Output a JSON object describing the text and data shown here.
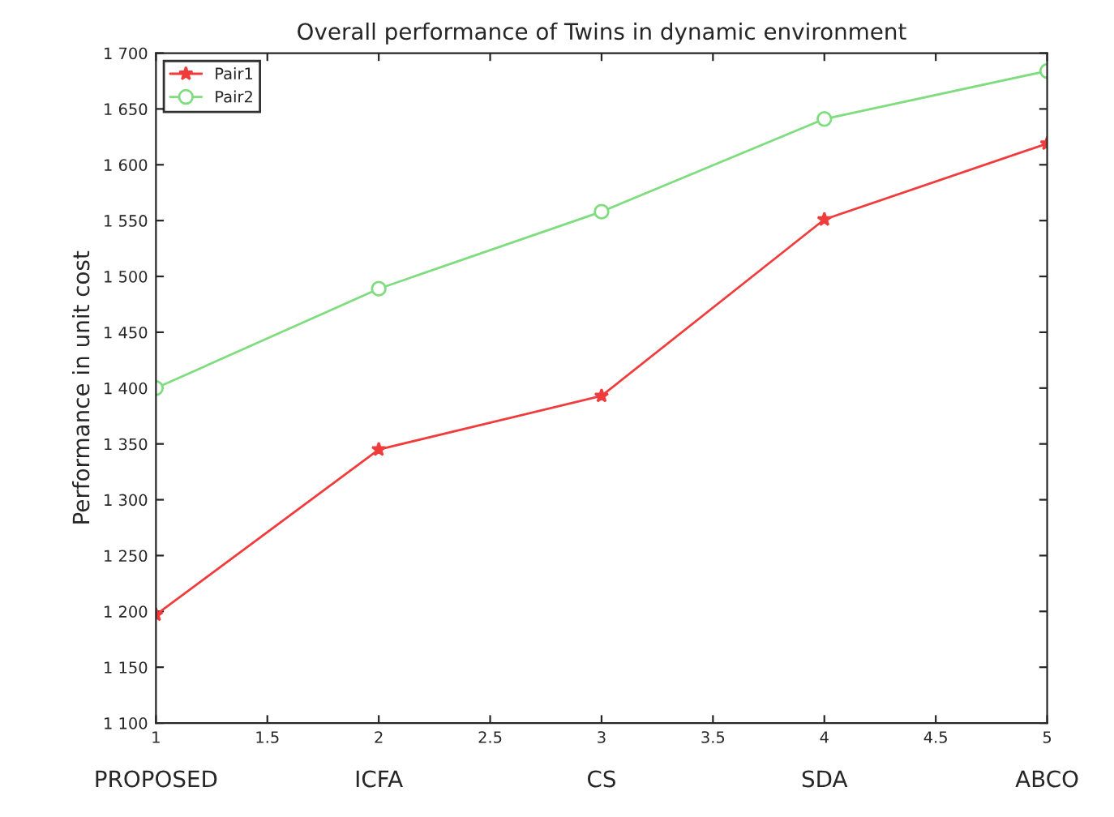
{
  "chart_data": {
    "type": "line",
    "title": "Overall performance of Twins in dynamic environment",
    "ylabel": "Performance in unit cost",
    "x": [
      1,
      2,
      3,
      4,
      5
    ],
    "series": [
      {
        "name": "Pair1",
        "color": "#f03c3c",
        "values": [
          1197,
          1345,
          1393,
          1551,
          1619
        ],
        "marker": "star"
      },
      {
        "name": "Pair2",
        "color": "#7fdc7f",
        "values": [
          1400,
          1489,
          1558,
          1641,
          1684
        ],
        "marker": "circle"
      }
    ],
    "xlim": [
      1,
      5
    ],
    "xticks": [
      1,
      1.5,
      2,
      2.5,
      3,
      3.5,
      4,
      4.5,
      5
    ],
    "ylim": [
      1100,
      1700
    ],
    "yticks": [
      {
        "value": 1100,
        "label": "1 100"
      },
      {
        "value": 1150,
        "label": "1 150"
      },
      {
        "value": 1200,
        "label": "1 200"
      },
      {
        "value": 1250,
        "label": "1 250"
      },
      {
        "value": 1300,
        "label": "1 300"
      },
      {
        "value": 1350,
        "label": "1 350"
      },
      {
        "value": 1400,
        "label": "1 400"
      },
      {
        "value": 1450,
        "label": "1 450"
      },
      {
        "value": 1500,
        "label": "1 500"
      },
      {
        "value": 1550,
        "label": "1 550"
      },
      {
        "value": 1600,
        "label": "1 600"
      },
      {
        "value": 1650,
        "label": "1 650"
      },
      {
        "value": 1700,
        "label": "1 700"
      }
    ],
    "annotations": [
      "PROPOSED",
      "ICFA",
      "CS",
      "SDA",
      "ABCO"
    ],
    "legend": "top left",
    "grid": false,
    "line_style": "solid"
  }
}
